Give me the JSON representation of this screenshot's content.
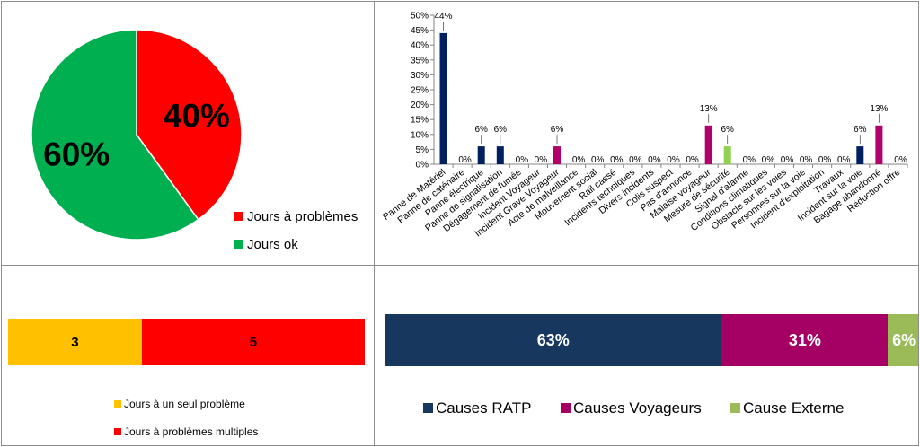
{
  "chart_data": [
    {
      "id": "days-share",
      "type": "pie",
      "categories": [
        "Jours à problèmes",
        "Jours ok"
      ],
      "values": [
        40,
        60
      ],
      "labels": [
        "40%",
        "60%"
      ],
      "colors": [
        "#ff0000",
        "#00b050"
      ],
      "legend_position": "bottom-right"
    },
    {
      "id": "incident-types",
      "type": "bar",
      "categories": [
        "Panne de Matériel",
        "Panne de caténaire",
        "Panne électrique",
        "Panne de signalisation",
        "Dégagement de fumée",
        "Incident Voyageur",
        "Incident Grave Voyageur",
        "Acte de malveillance",
        "Mouvement social",
        "Rail cassé",
        "Incidents techniques",
        "Divers incidents",
        "Colis suspect",
        "Pas d'annonce",
        "Malaise voyageur",
        "Mesure de sécurité",
        "Signal d'alarme",
        "Conditions climatiques",
        "Obstacle sur les voies",
        "Personnes sur la voie",
        "Incident d'exploitation",
        "Travaux",
        "Incident sur la voie",
        "Bagage abandonné",
        "Réduction offre"
      ],
      "values": [
        44,
        0,
        6,
        6,
        0,
        0,
        6,
        0,
        0,
        0,
        0,
        0,
        0,
        0,
        13,
        6,
        0,
        0,
        0,
        0,
        0,
        0,
        6,
        13,
        0
      ],
      "data_labels": [
        "44%",
        "0%",
        "6%",
        "6%",
        "0%",
        "0%",
        "6%",
        "0%",
        "0%",
        "0%",
        "0%",
        "0%",
        "0%",
        "0%",
        "13%",
        "6%",
        "0%",
        "0%",
        "0%",
        "0%",
        "0%",
        "0%",
        "6%",
        "13%",
        "0%"
      ],
      "bar_colors": [
        "#002060",
        "#002060",
        "#002060",
        "#002060",
        "#002060",
        "#002060",
        "#b0006a",
        "#002060",
        "#002060",
        "#002060",
        "#002060",
        "#002060",
        "#002060",
        "#002060",
        "#b0006a",
        "#92d050",
        "#002060",
        "#002060",
        "#002060",
        "#002060",
        "#002060",
        "#002060",
        "#002060",
        "#b0006a",
        "#002060"
      ],
      "ylim": [
        0,
        50
      ],
      "yticks": [
        "0%",
        "5%",
        "10%",
        "15%",
        "20%",
        "25%",
        "30%",
        "35%",
        "40%",
        "45%",
        "50%"
      ],
      "grid": false
    },
    {
      "id": "problem-days",
      "type": "bar",
      "orientation": "horizontal-stacked",
      "categories": [
        "Jours à un seul problème",
        "Jours à problèmes multiples"
      ],
      "values": [
        3,
        5
      ],
      "labels": [
        "3",
        "5"
      ],
      "colors": [
        "#ffc000",
        "#ff0000"
      ],
      "legend_position": "bottom"
    },
    {
      "id": "cause-split",
      "type": "bar",
      "orientation": "horizontal-stacked",
      "categories": [
        "Causes RATP",
        "Causes Voyageurs",
        "Cause Externe"
      ],
      "values": [
        63,
        31,
        6
      ],
      "labels": [
        "63%",
        "31%",
        "6%"
      ],
      "colors": [
        "#17375e",
        "#a50064",
        "#9bbb59"
      ],
      "legend_position": "bottom"
    }
  ]
}
